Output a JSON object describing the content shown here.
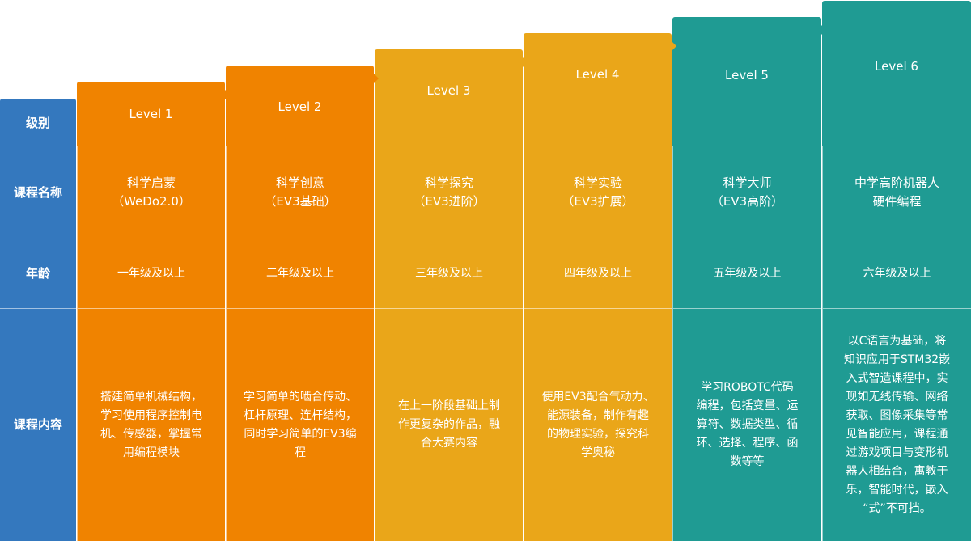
{
  "colors": {
    "label": "#3478be",
    "orange": "#f08300",
    "yellow": "#eaa619",
    "teal": "#1f9b93"
  },
  "row_labels": {
    "level": "级别",
    "name": "课程名称",
    "age": "年龄",
    "content": "课程内容"
  },
  "levels": [
    {
      "level": "Level 1",
      "name": "科学启蒙\n（WeDo2.0）",
      "age": "一年级及以上",
      "content": "搭建简单机械结构，\n学习使用程序控制电\n机、传感器，掌握常\n用编程模块",
      "color": "#f08300"
    },
    {
      "level": "Level 2",
      "name": "科学创意\n（EV3基础）",
      "age": "二年级及以上",
      "content": "学习简单的啮合传动、\n杠杆原理、连杆结构，\n同时学习简单的EV3编\n程",
      "color": "#f08300"
    },
    {
      "level": "Level 3",
      "name": "科学探究\n（EV3进阶）",
      "age": "三年级及以上",
      "content": "在上一阶段基础上制\n作更复杂的作品，融\n合大赛内容",
      "color": "#eaa619"
    },
    {
      "level": "Level 4",
      "name": "科学实验\n（EV3扩展）",
      "age": "四年级及以上",
      "content": "使用EV3配合气动力、\n能源装备，制作有趣\n的物理实验，探究科\n学奥秘",
      "color": "#eaa619"
    },
    {
      "level": "Level 5",
      "name": "科学大师\n（EV3高阶）",
      "age": "五年级及以上",
      "content": "学习ROBOTC代码\n编程，包括变量、运\n算符、数据类型、循\n环、选择、程序、函\n数等等",
      "color": "#1f9b93"
    },
    {
      "level": "Level 6",
      "name": "中学高阶机器人\n硬件编程",
      "age": "六年级及以上",
      "content": "以C语言为基础，将\n知识应用于STM32嵌\n入式智造课程中，实\n现如无线传输、网络\n获取、图像采集等常\n见智能应用，课程通\n过游戏项目与变形机\n器人相结合，寓教于\n乐，智能时代，嵌入\n“式”不可挡。",
      "color": "#1f9b93"
    }
  ]
}
